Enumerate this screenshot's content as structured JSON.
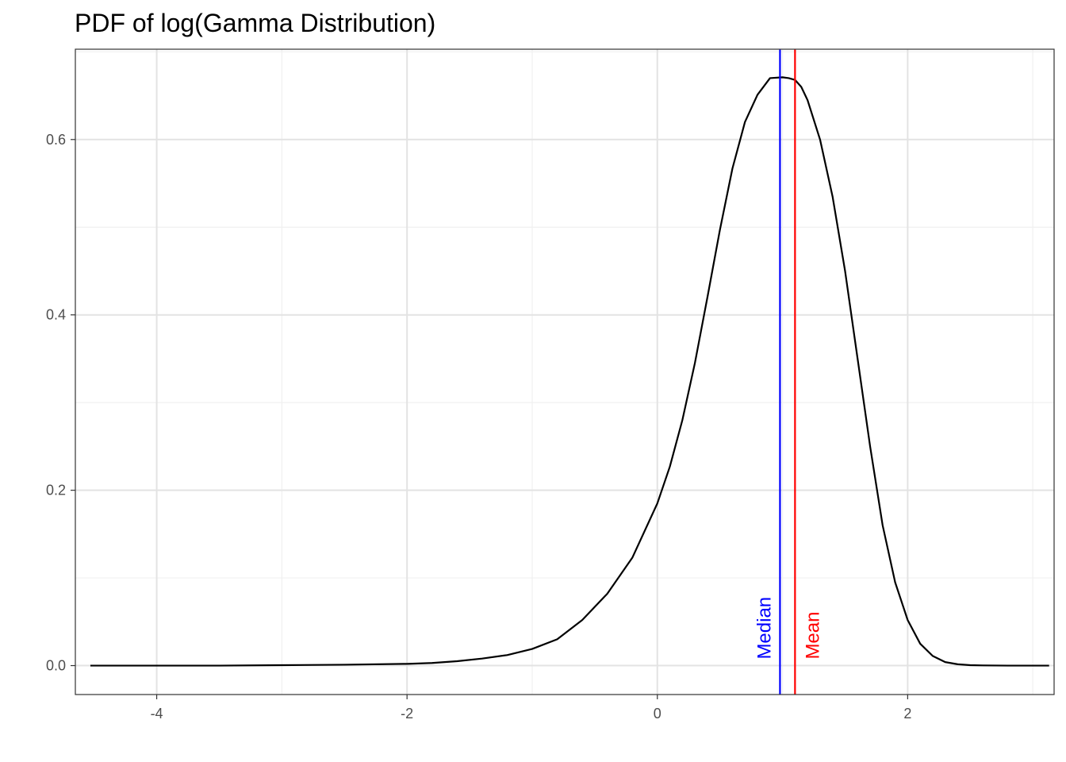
{
  "chart_data": {
    "type": "line",
    "title": "PDF of log(Gamma Distribution)",
    "xlabel": "",
    "ylabel": "",
    "xlim": [
      -4.65,
      3.17
    ],
    "ylim": [
      -0.033,
      0.703
    ],
    "x_ticks": [
      -4,
      -2,
      0,
      2
    ],
    "x_tick_labels": [
      "-4",
      "-2",
      "0",
      "2"
    ],
    "y_ticks": [
      0.0,
      0.2,
      0.4,
      0.6
    ],
    "y_tick_labels": [
      "0.0",
      "0.2",
      "0.4",
      "0.6"
    ],
    "grid": true,
    "series": [
      {
        "color": "#000000",
        "x": [
          -4.53,
          -4.0,
          -3.5,
          -3.0,
          -2.5,
          -2.0,
          -1.8,
          -1.6,
          -1.4,
          -1.2,
          -1.0,
          -0.8,
          -0.6,
          -0.4,
          -0.2,
          0.0,
          0.1,
          0.2,
          0.3,
          0.4,
          0.5,
          0.6,
          0.7,
          0.8,
          0.9,
          1.0,
          1.05,
          1.1,
          1.15,
          1.2,
          1.3,
          1.4,
          1.5,
          1.6,
          1.7,
          1.8,
          1.9,
          2.0,
          2.1,
          2.2,
          2.3,
          2.4,
          2.5,
          2.6,
          2.7,
          2.8,
          3.0,
          3.13
        ],
        "y": [
          0.0,
          0.0,
          0.0,
          0.0005,
          0.001,
          0.002,
          0.003,
          0.005,
          0.008,
          0.012,
          0.019,
          0.03,
          0.052,
          0.082,
          0.123,
          0.185,
          0.227,
          0.28,
          0.345,
          0.42,
          0.497,
          0.567,
          0.62,
          0.651,
          0.67,
          0.671,
          0.67,
          0.668,
          0.66,
          0.645,
          0.6,
          0.535,
          0.45,
          0.35,
          0.25,
          0.16,
          0.095,
          0.052,
          0.025,
          0.011,
          0.004,
          0.0015,
          0.0005,
          0.0002,
          0.0001,
          0.0,
          0.0,
          0.0
        ]
      }
    ],
    "vlines": [
      {
        "label": "Median",
        "x": 0.98,
        "color": "#0000ff"
      },
      {
        "label": "Mean",
        "x": 1.1,
        "color": "#ff0000"
      }
    ]
  }
}
